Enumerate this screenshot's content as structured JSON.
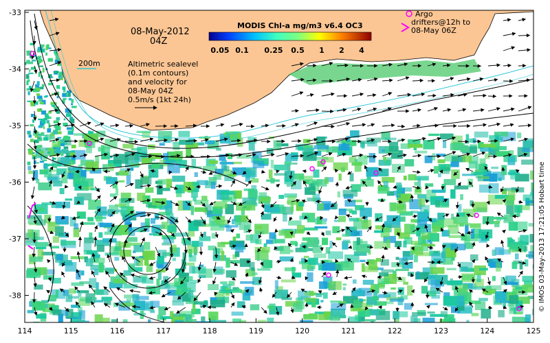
{
  "map": {
    "date_label": "08-May-2012",
    "time_label": "04Z",
    "bathy_label": "200m",
    "alt_lines": [
      "Altimetric sealevel",
      "(0.1m contours)",
      "and velocity for",
      "08-May 04Z",
      "0.5m/s (1kt 24h)"
    ],
    "colorbar_title": "MODIS Chl-a mg/m3 v6.4 OC3",
    "colorbar_ticks": [
      "0.05",
      "0.1",
      "0.25",
      "0.5",
      "1",
      "2",
      "4"
    ],
    "argo_lines": [
      "Argo",
      "drifters@12h to",
      "08-May 06Z"
    ],
    "credit": "© IMOS 03-May-2013 17:21:05 Hobart time",
    "x_ticks": [
      "114",
      "115",
      "116",
      "117",
      "118",
      "119",
      "120",
      "121",
      "122",
      "123",
      "124",
      "125"
    ],
    "y_ticks": [
      "-33",
      "-34",
      "-35",
      "-36",
      "-37",
      "-38"
    ],
    "colors": {
      "land": "#fbc694",
      "argo": "#ff00ff",
      "bathy": "#31c8d8",
      "arrow": "#000000"
    }
  }
}
